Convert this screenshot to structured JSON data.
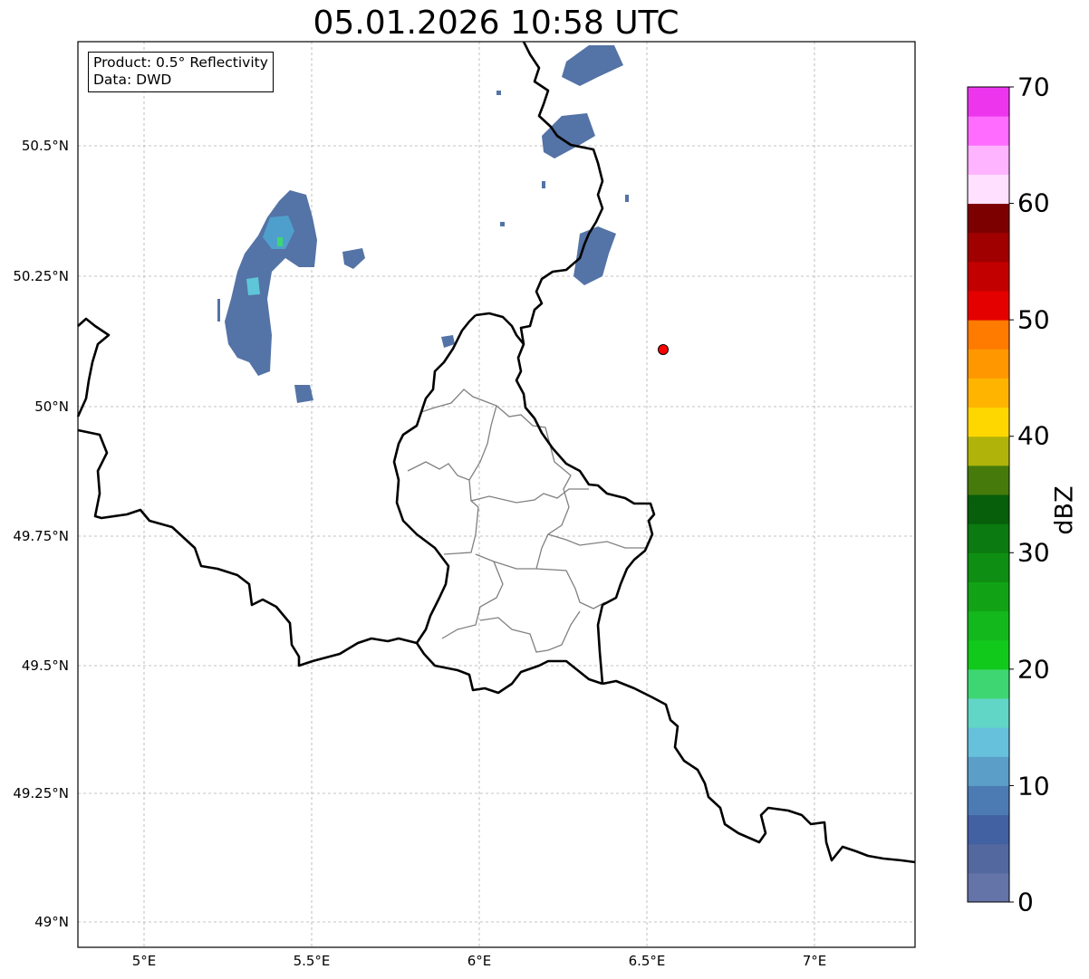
{
  "title": "05.01.2026 10:58 UTC",
  "info": {
    "product": "Product: 0.5° Reflectivity",
    "data": "Data: DWD"
  },
  "lat_labels": [
    "50.5°N",
    "50.25°N",
    "50°N",
    "49.75°N",
    "49.5°N",
    "49.25°N",
    "49°N"
  ],
  "lon_labels": [
    "5°E",
    "5.5°E",
    "6°E",
    "6.5°E",
    "7°E"
  ],
  "colorbar": {
    "label": "dBZ",
    "ticks": [
      "0",
      "10",
      "20",
      "30",
      "40",
      "50",
      "60",
      "70"
    ],
    "colors": [
      "#6473a8",
      "#52689e",
      "#4261a3",
      "#4b7bb2",
      "#5b9ec8",
      "#66c1dc",
      "#62d6c6",
      "#3ed672",
      "#11c91a",
      "#13b81c",
      "#11a315",
      "#0e8f13",
      "#0b7a10",
      "#075e0b",
      "#467a0b",
      "#b0b30a",
      "#ffd700",
      "#ffb500",
      "#ff9800",
      "#ff7b00",
      "#e50000",
      "#c30000",
      "#a00000",
      "#7d0000",
      "#ffe0ff",
      "#ffb4ff",
      "#ff6cff",
      "#ee35ee"
    ]
  },
  "marker": {
    "color": "#ff0000"
  }
}
